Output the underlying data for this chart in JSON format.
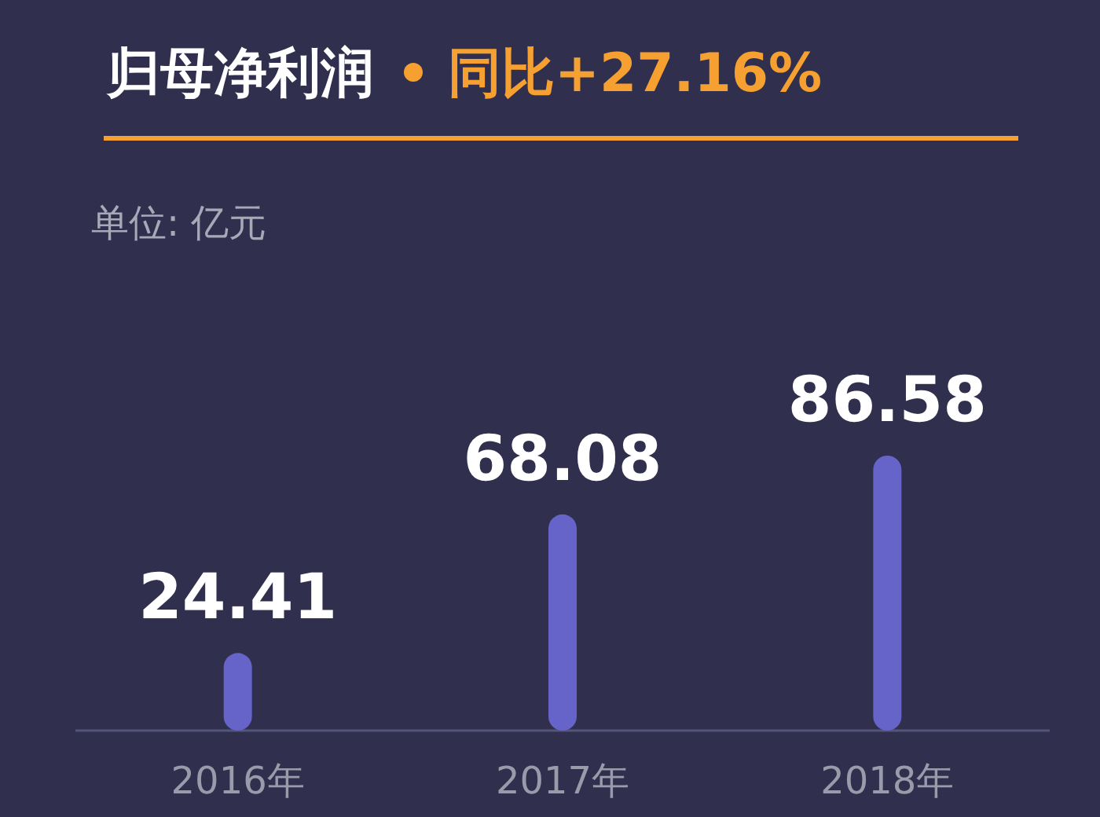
{
  "chart_data": {
    "type": "bar",
    "title": "归母净利润",
    "subtitle": "同比+27.16%",
    "annotations": [
      "单位: 亿元"
    ],
    "categories": [
      "2016年",
      "2017年",
      "2018年"
    ],
    "values": [
      24.41,
      68.08,
      86.58
    ],
    "color": "#6664c8",
    "data_labels": true
  }
}
